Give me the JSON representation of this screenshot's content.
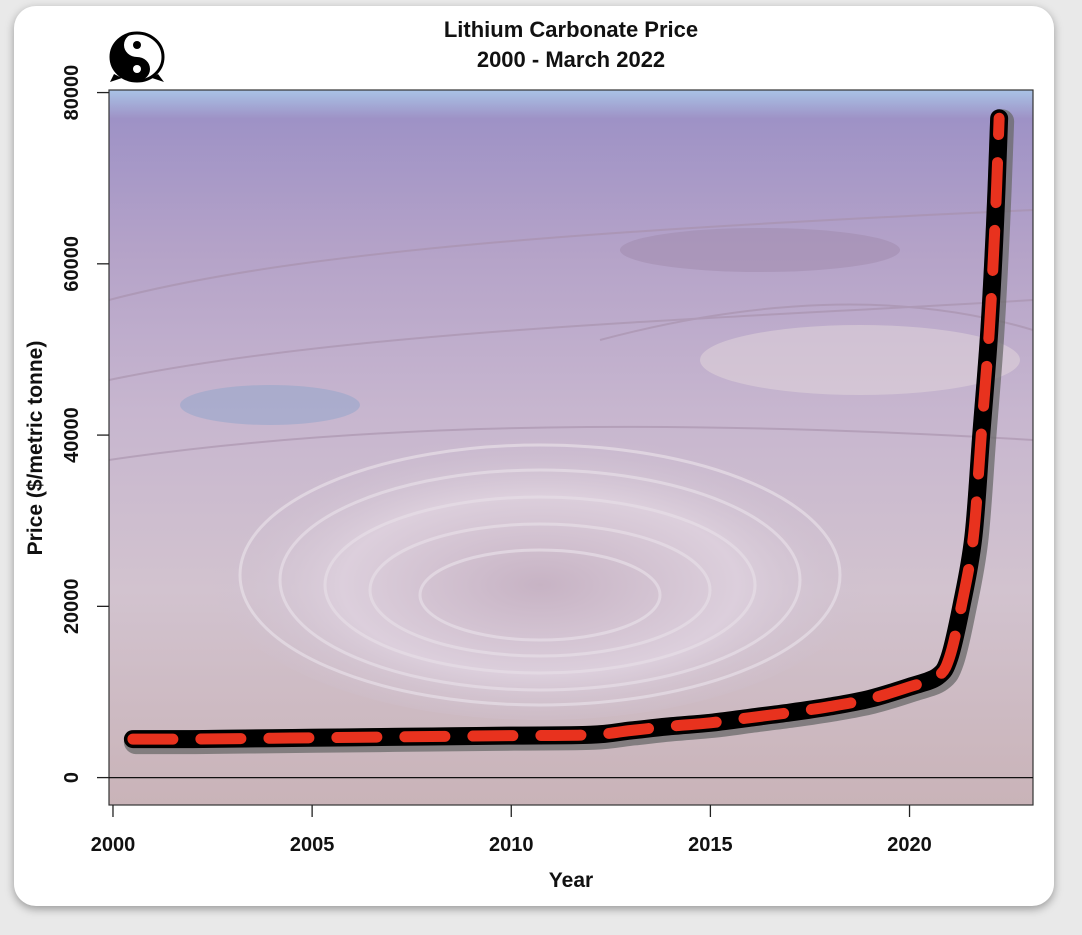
{
  "chart_data": {
    "type": "line",
    "title": "Lithium Carbonate Price",
    "subtitle": "2000 - March 2022",
    "xlabel": "Year",
    "ylabel": "Price ($/metric tonne)",
    "xlim": [
      1999.9,
      2023.1
    ],
    "ylim": [
      -3200,
      80300
    ],
    "xticks": [
      2000,
      2005,
      2010,
      2015,
      2020
    ],
    "yticks": [
      0,
      20000,
      40000,
      60000,
      80000
    ],
    "x_tick_labels": [
      "2000",
      "2005",
      "2010",
      "2015",
      "2020"
    ],
    "y_tick_labels": [
      "0",
      "20000",
      "40000",
      "60000",
      "80000"
    ],
    "grid": false,
    "reference_line_y": 0,
    "series": [
      {
        "style": "dashed",
        "color": "#e8321e",
        "outline_color": "#000000",
        "x": [
          2000.5,
          2002,
          2004,
          2006,
          2008,
          2010,
          2012,
          2013,
          2014,
          2015,
          2016,
          2017,
          2018,
          2019,
          2020,
          2020.7,
          2021,
          2021.3,
          2021.6,
          2021.8,
          2022.0,
          2022.15,
          2022.25
        ],
        "y": [
          4500,
          4500,
          4600,
          4700,
          4800,
          4900,
          5000,
          5500,
          6000,
          6400,
          7000,
          7600,
          8300,
          9200,
          10600,
          11800,
          14000,
          20000,
          28000,
          40000,
          52000,
          65000,
          77000
        ]
      }
    ]
  }
}
